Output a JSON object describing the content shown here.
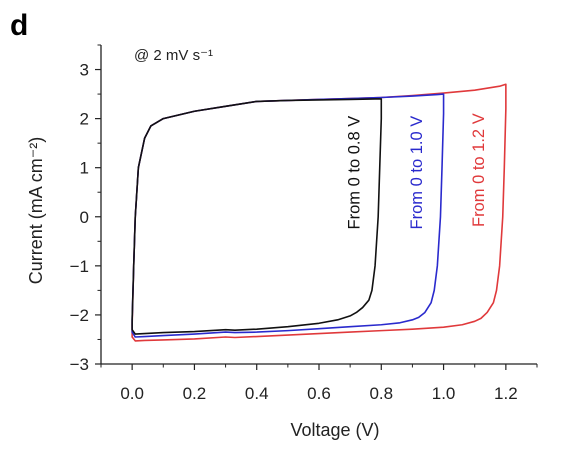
{
  "panel_label": "d",
  "chart_data": {
    "type": "line",
    "annotation": "@ 2 mV s⁻¹",
    "xlabel": "Voltage (V)",
    "ylabel": "Current (mA cm⁻²)",
    "xlim": [
      -0.1,
      1.3
    ],
    "ylim": [
      -3,
      3.5
    ],
    "xticks": [
      0.0,
      0.2,
      0.4,
      0.6,
      0.8,
      1.0,
      1.2
    ],
    "xtick_labels": [
      "0.0",
      "0.2",
      "0.4",
      "0.6",
      "0.8",
      "1.0",
      "1.2"
    ],
    "yticks": [
      -3,
      -2,
      -1,
      0,
      1,
      2,
      3
    ],
    "ytick_labels": [
      "−3",
      "−2",
      "−1",
      "0",
      "1",
      "2",
      "3"
    ],
    "grid": false,
    "legend": "none",
    "series": [
      {
        "name": "From 0 to 0.8 V",
        "color": "#111111",
        "x": [
          0.0,
          0.005,
          0.01,
          0.02,
          0.04,
          0.06,
          0.1,
          0.2,
          0.3,
          0.4,
          0.5,
          0.6,
          0.7,
          0.78,
          0.8,
          0.8,
          0.795,
          0.79,
          0.78,
          0.77,
          0.76,
          0.74,
          0.72,
          0.7,
          0.66,
          0.6,
          0.5,
          0.4,
          0.33,
          0.3,
          0.2,
          0.1,
          0.04,
          0.01,
          0.0,
          0.0
        ],
        "y": [
          -2.1,
          -1.0,
          0.0,
          1.0,
          1.6,
          1.85,
          2.0,
          2.15,
          2.25,
          2.35,
          2.37,
          2.38,
          2.39,
          2.4,
          2.4,
          2.0,
          1.0,
          0.0,
          -1.0,
          -1.5,
          -1.7,
          -1.85,
          -1.95,
          -2.02,
          -2.1,
          -2.17,
          -2.24,
          -2.29,
          -2.31,
          -2.3,
          -2.34,
          -2.36,
          -2.38,
          -2.39,
          -2.3,
          -2.1
        ]
      },
      {
        "name": "From 0 to 1.0 V",
        "color": "#2a2acd",
        "x": [
          0.0,
          0.005,
          0.01,
          0.02,
          0.04,
          0.06,
          0.1,
          0.2,
          0.3,
          0.4,
          0.5,
          0.6,
          0.7,
          0.8,
          0.9,
          0.98,
          1.0,
          1.0,
          0.995,
          0.99,
          0.98,
          0.97,
          0.96,
          0.94,
          0.92,
          0.9,
          0.86,
          0.8,
          0.7,
          0.6,
          0.5,
          0.4,
          0.33,
          0.3,
          0.2,
          0.1,
          0.04,
          0.01,
          0.0,
          0.0
        ],
        "y": [
          -2.1,
          -1.0,
          0.0,
          1.0,
          1.6,
          1.85,
          2.0,
          2.15,
          2.25,
          2.35,
          2.37,
          2.39,
          2.41,
          2.43,
          2.46,
          2.49,
          2.5,
          2.1,
          1.0,
          0.0,
          -1.0,
          -1.5,
          -1.75,
          -1.95,
          -2.05,
          -2.1,
          -2.16,
          -2.2,
          -2.24,
          -2.28,
          -2.32,
          -2.35,
          -2.36,
          -2.35,
          -2.39,
          -2.42,
          -2.44,
          -2.45,
          -2.35,
          -2.1
        ]
      },
      {
        "name": "From 0 to 1.2 V",
        "color": "#e0393b",
        "x": [
          0.0,
          0.005,
          0.01,
          0.02,
          0.04,
          0.06,
          0.1,
          0.2,
          0.3,
          0.4,
          0.5,
          0.6,
          0.7,
          0.8,
          0.9,
          1.0,
          1.1,
          1.18,
          1.2,
          1.2,
          1.195,
          1.19,
          1.18,
          1.17,
          1.16,
          1.14,
          1.12,
          1.1,
          1.06,
          1.0,
          0.9,
          0.8,
          0.7,
          0.6,
          0.5,
          0.4,
          0.33,
          0.3,
          0.2,
          0.1,
          0.04,
          0.01,
          0.0,
          0.0
        ],
        "y": [
          -2.2,
          -1.0,
          0.0,
          1.0,
          1.6,
          1.85,
          2.0,
          2.15,
          2.25,
          2.35,
          2.37,
          2.39,
          2.41,
          2.43,
          2.47,
          2.52,
          2.58,
          2.66,
          2.7,
          2.2,
          1.0,
          0.0,
          -1.0,
          -1.5,
          -1.75,
          -1.95,
          -2.07,
          -2.13,
          -2.2,
          -2.25,
          -2.29,
          -2.32,
          -2.35,
          -2.38,
          -2.41,
          -2.44,
          -2.46,
          -2.45,
          -2.49,
          -2.51,
          -2.52,
          -2.53,
          -2.45,
          -2.2
        ]
      }
    ]
  }
}
